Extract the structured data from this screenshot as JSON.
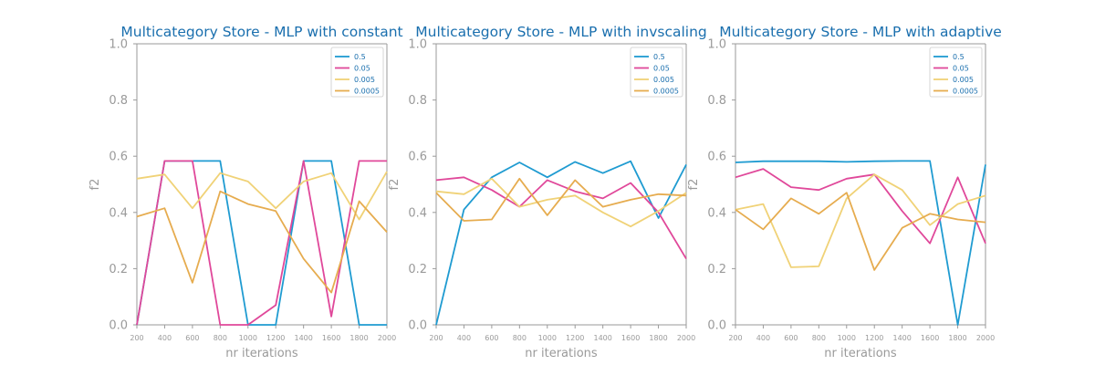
{
  "colors": {
    "title": "#1a6fae",
    "axis": "#9a9a9a",
    "series": [
      "#1f9bd1",
      "#e0489a",
      "#f0d277",
      "#e6ac4f"
    ]
  },
  "chart_data": [
    {
      "type": "line",
      "title": "Multicategory Store - MLP with constant",
      "xlabel": "nr iterations",
      "ylabel": "f2",
      "ylim": [
        0,
        1
      ],
      "yticks": [
        "0.0",
        "0.2",
        "0.4",
        "0.6",
        "0.8",
        "1.0"
      ],
      "x": [
        200,
        400,
        600,
        800,
        1000,
        1200,
        1400,
        1600,
        1800,
        2000
      ],
      "legend_position": "top-right",
      "series": [
        {
          "name": "0.5",
          "values": [
            0.0,
            0.583,
            0.583,
            0.583,
            0.0,
            0.0,
            0.583,
            0.583,
            0.0,
            0.0
          ]
        },
        {
          "name": "0.05",
          "values": [
            0.0,
            0.583,
            0.583,
            0.0,
            0.0,
            0.07,
            0.583,
            0.03,
            0.583,
            0.583
          ]
        },
        {
          "name": "0.005",
          "values": [
            0.52,
            0.535,
            0.415,
            0.54,
            0.51,
            0.415,
            0.51,
            0.54,
            0.375,
            0.545
          ]
        },
        {
          "name": "0.0005",
          "values": [
            0.385,
            0.415,
            0.15,
            0.475,
            0.43,
            0.405,
            0.235,
            0.115,
            0.44,
            0.33
          ]
        }
      ]
    },
    {
      "type": "line",
      "title": "Multicategory Store - MLP with invscaling",
      "xlabel": "nr iterations",
      "ylabel": "f2",
      "ylim": [
        0,
        1
      ],
      "yticks": [
        "0.0",
        "0.2",
        "0.4",
        "0.6",
        "0.8",
        "1.0"
      ],
      "x": [
        200,
        400,
        600,
        800,
        1000,
        1200,
        1400,
        1600,
        1800,
        2000
      ],
      "legend_position": "top-right",
      "series": [
        {
          "name": "0.5",
          "values": [
            0.0,
            0.41,
            0.525,
            0.578,
            0.525,
            0.58,
            0.54,
            0.582,
            0.38,
            0.57
          ]
        },
        {
          "name": "0.05",
          "values": [
            0.515,
            0.525,
            0.48,
            0.42,
            0.515,
            0.475,
            0.45,
            0.505,
            0.4,
            0.235
          ]
        },
        {
          "name": "0.005",
          "values": [
            0.475,
            0.465,
            0.52,
            0.42,
            0.445,
            0.46,
            0.4,
            0.35,
            0.405,
            0.47
          ]
        },
        {
          "name": "0.0005",
          "values": [
            0.47,
            0.37,
            0.375,
            0.52,
            0.39,
            0.515,
            0.42,
            0.445,
            0.465,
            0.46
          ]
        }
      ]
    },
    {
      "type": "line",
      "title": "Multicategory Store - MLP with adaptive",
      "xlabel": "nr iterations",
      "ylabel": "f2",
      "ylim": [
        0,
        1
      ],
      "yticks": [
        "0.0",
        "0.2",
        "0.4",
        "0.6",
        "0.8",
        "1.0"
      ],
      "x": [
        200,
        400,
        600,
        800,
        1000,
        1200,
        1400,
        1600,
        1800,
        2000
      ],
      "legend_position": "top-right",
      "series": [
        {
          "name": "0.5",
          "values": [
            0.578,
            0.582,
            0.582,
            0.582,
            0.58,
            0.582,
            0.583,
            0.583,
            0.0,
            0.57
          ]
        },
        {
          "name": "0.05",
          "values": [
            0.525,
            0.555,
            0.49,
            0.48,
            0.52,
            0.535,
            0.405,
            0.29,
            0.525,
            0.29
          ]
        },
        {
          "name": "0.005",
          "values": [
            0.41,
            0.43,
            0.205,
            0.208,
            0.45,
            0.535,
            0.48,
            0.355,
            0.43,
            0.46
          ]
        },
        {
          "name": "0.0005",
          "values": [
            0.41,
            0.34,
            0.45,
            0.395,
            0.47,
            0.195,
            0.345,
            0.395,
            0.375,
            0.365
          ]
        }
      ]
    }
  ]
}
